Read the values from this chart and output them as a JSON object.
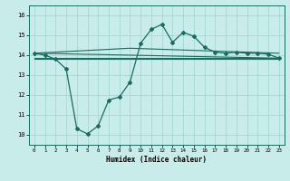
{
  "xlabel": "Humidex (Indice chaleur)",
  "xlim": [
    -0.5,
    23.5
  ],
  "ylim": [
    9.5,
    16.5
  ],
  "yticks": [
    10,
    11,
    12,
    13,
    14,
    15,
    16
  ],
  "xticks": [
    0,
    1,
    2,
    3,
    4,
    5,
    6,
    7,
    8,
    9,
    10,
    11,
    12,
    13,
    14,
    15,
    16,
    17,
    18,
    19,
    20,
    21,
    22,
    23
  ],
  "bg_color": "#c8ecea",
  "grid_color": "#9fd4d0",
  "line_color": "#1a6b60",
  "line_main": {
    "x": [
      0,
      1,
      2,
      3,
      4,
      5,
      6,
      7,
      8,
      9,
      10,
      11,
      12,
      13,
      14,
      15,
      16,
      17,
      18,
      19,
      20,
      21,
      22,
      23
    ],
    "y": [
      14.1,
      14.0,
      13.8,
      13.3,
      10.3,
      10.05,
      10.45,
      11.75,
      11.9,
      12.65,
      14.6,
      15.3,
      15.55,
      14.65,
      15.15,
      14.95,
      14.4,
      14.15,
      14.1,
      14.15,
      14.1,
      14.1,
      14.05,
      13.85
    ]
  },
  "line_flat1": {
    "x": [
      0,
      23
    ],
    "y": [
      13.8,
      13.8
    ]
  },
  "line_flat2": {
    "x": [
      0,
      23
    ],
    "y": [
      13.85,
      13.85
    ]
  },
  "line_diag1": {
    "x": [
      0,
      23
    ],
    "y": [
      14.1,
      13.85
    ]
  },
  "line_rise": {
    "x": [
      0,
      9,
      23
    ],
    "y": [
      14.1,
      14.35,
      14.1
    ]
  }
}
